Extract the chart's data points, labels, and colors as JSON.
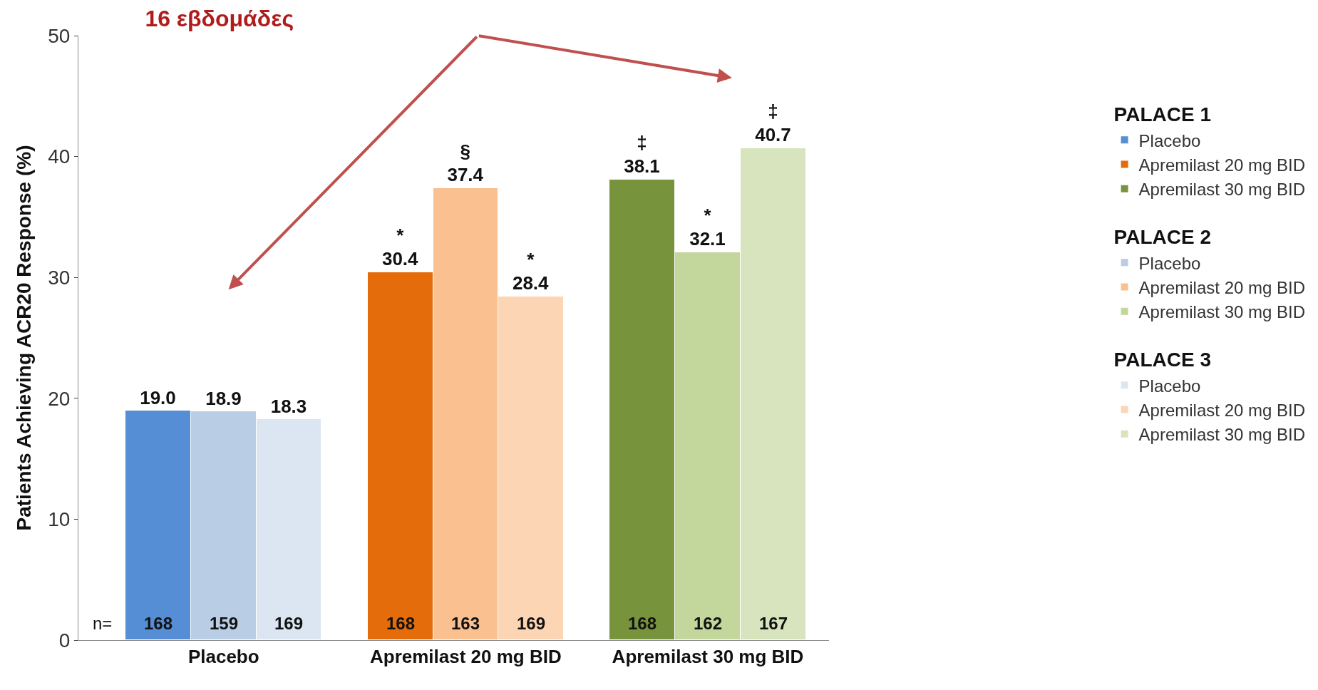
{
  "chart_data": {
    "type": "bar",
    "title": "16 εβδομάδες",
    "ylabel": "Patients Achieving ACR20 Response (%)",
    "categories": [
      "Placebo",
      "Apremilast 20 mg BID",
      "Apremilast 30 mg BID"
    ],
    "series": [
      {
        "name": "Placebo",
        "color": "#558ed5",
        "values": [
          19.0,
          null,
          null
        ],
        "value_labels": [
          "19.0",
          null,
          null
        ]
      },
      {
        "name": "Apremilast 20 mg BID",
        "color": "#e46c0a",
        "values": [
          null,
          30.4,
          null
        ],
        "value_labels": [
          null,
          "*\n30.4",
          null
        ]
      },
      {
        "name": "Apremilast 30 mg BID",
        "color": "#77933c",
        "values": [
          null,
          null,
          38.1
        ],
        "value_labels": [
          null,
          null,
          "‡\n38.1"
        ]
      },
      {
        "name": "Placebo",
        "color": "#b9cde5",
        "values": [
          18.9,
          null,
          null
        ],
        "value_labels": [
          "18.9",
          null,
          null
        ]
      },
      {
        "name": "Apremilast 20 mg BID",
        "color": "#fac090",
        "values": [
          null,
          37.4,
          null
        ],
        "value_labels": [
          null,
          "§\n37.4",
          null
        ]
      },
      {
        "name": "Apremilast 30 mg BID",
        "color": "#c3d69b",
        "values": [
          null,
          null,
          32.1
        ],
        "value_labels": [
          null,
          null,
          "*\n32.1"
        ]
      },
      {
        "name": "Placebo",
        "color": "#dce6f2",
        "values": [
          18.3,
          null,
          null
        ],
        "value_labels": [
          "18.3",
          null,
          null
        ]
      },
      {
        "name": "Apremilast 20 mg BID",
        "color": "#fcd5b5",
        "values": [
          null,
          28.4,
          null
        ],
        "value_labels": [
          null,
          "*\n28.4",
          null
        ]
      },
      {
        "name": "Apremilast 30 mg BID",
        "color": "#d7e4bd",
        "values": [
          null,
          null,
          40.7
        ],
        "value_labels": [
          null,
          null,
          "‡\n40.7"
        ]
      }
    ],
    "annotations": [
      "PALACE 1",
      "PALACE 2",
      "PALACE 3",
      "n=",
      "168",
      "159",
      "169",
      "168",
      "163",
      "169",
      "168",
      "162",
      "167"
    ],
    "ylim": [
      0,
      50
    ],
    "yticks": [
      0,
      10,
      20,
      30,
      40,
      50
    ],
    "legend": "right"
  }
}
